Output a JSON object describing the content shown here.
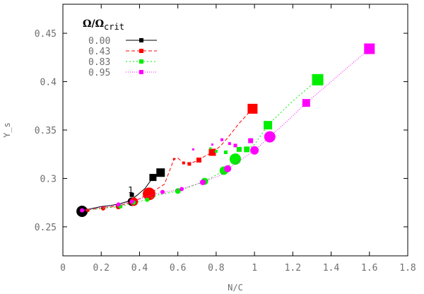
{
  "chart_data": {
    "type": "scatter",
    "xlabel": "N/C",
    "ylabel": "Y_s",
    "xlim": [
      0,
      1.8
    ],
    "ylim": [
      0.22,
      0.48
    ],
    "x_ticks": [
      "0",
      "0.2",
      "0.4",
      "0.6",
      "0.8",
      "1",
      "1.2",
      "1.4",
      "1.6",
      "1.8"
    ],
    "y_ticks": [
      "0.25",
      "0.3",
      "0.35",
      "0.4",
      "0.45"
    ],
    "legend": {
      "title": "Ω/Ω",
      "title_sub": "crit",
      "position": "top-left"
    },
    "annotations": [
      {
        "text": "1",
        "x": 0.37,
        "y": 0.285
      }
    ],
    "series": [
      {
        "name": "0.00",
        "color": "#000000",
        "dash": "solid",
        "line": [
          [
            0.1,
            0.266
          ],
          [
            0.13,
            0.268
          ],
          [
            0.2,
            0.271
          ],
          [
            0.25,
            0.272
          ],
          [
            0.3,
            0.274
          ],
          [
            0.35,
            0.277
          ],
          [
            0.39,
            0.283
          ],
          [
            0.43,
            0.29
          ],
          [
            0.47,
            0.301
          ],
          [
            0.51,
            0.306
          ]
        ],
        "circles": [
          {
            "x": 0.1,
            "y": 0.266,
            "r": 8
          },
          {
            "x": 0.36,
            "y": 0.276,
            "r": 6
          }
        ],
        "squares": [
          {
            "x": 0.36,
            "y": 0.283,
            "s": 6
          },
          {
            "x": 0.47,
            "y": 0.301,
            "s": 10
          },
          {
            "x": 0.51,
            "y": 0.306,
            "s": 12
          }
        ]
      },
      {
        "name": "0.43",
        "color": "#ff0000",
        "dash": "5,3",
        "line": [
          [
            0.1,
            0.267
          ],
          [
            0.15,
            0.268
          ],
          [
            0.2,
            0.269
          ],
          [
            0.3,
            0.272
          ],
          [
            0.37,
            0.276
          ],
          [
            0.45,
            0.284
          ],
          [
            0.53,
            0.294
          ],
          [
            0.58,
            0.32
          ],
          [
            0.6,
            0.321
          ],
          [
            0.63,
            0.316
          ],
          [
            0.66,
            0.315
          ],
          [
            0.71,
            0.319
          ],
          [
            0.74,
            0.323
          ],
          [
            0.78,
            0.327
          ],
          [
            0.82,
            0.333
          ],
          [
            0.86,
            0.342
          ],
          [
            0.92,
            0.357
          ],
          [
            0.99,
            0.372
          ]
        ],
        "circles": [
          {
            "x": 0.13,
            "y": 0.267,
            "r": 2.5
          },
          {
            "x": 0.21,
            "y": 0.269,
            "r": 3
          },
          {
            "x": 0.29,
            "y": 0.271,
            "r": 4
          },
          {
            "x": 0.37,
            "y": 0.276,
            "r": 6
          },
          {
            "x": 0.45,
            "y": 0.284,
            "r": 9
          }
        ],
        "squares": [
          {
            "x": 0.58,
            "y": 0.32,
            "s": 3
          },
          {
            "x": 0.63,
            "y": 0.316,
            "s": 4
          },
          {
            "x": 0.66,
            "y": 0.315,
            "s": 5
          },
          {
            "x": 0.71,
            "y": 0.319,
            "s": 7
          },
          {
            "x": 0.78,
            "y": 0.327,
            "s": 10
          },
          {
            "x": 0.99,
            "y": 0.372,
            "s": 14
          }
        ]
      },
      {
        "name": "0.83",
        "color": "#00ee00",
        "dash": "2,3",
        "line": [
          [
            0.1,
            0.267
          ],
          [
            0.2,
            0.269
          ],
          [
            0.3,
            0.271
          ],
          [
            0.37,
            0.275
          ],
          [
            0.44,
            0.278
          ],
          [
            0.5,
            0.283
          ],
          [
            0.6,
            0.287
          ],
          [
            0.74,
            0.297
          ],
          [
            0.84,
            0.308
          ],
          [
            0.9,
            0.32
          ],
          [
            0.92,
            0.33
          ],
          [
            0.97,
            0.331
          ],
          [
            1.0,
            0.335
          ],
          [
            1.07,
            0.355
          ],
          [
            1.2,
            0.38
          ],
          [
            1.33,
            0.402
          ]
        ],
        "circles": [
          {
            "x": 0.3,
            "y": 0.271,
            "r": 3
          },
          {
            "x": 0.37,
            "y": 0.275,
            "r": 3
          },
          {
            "x": 0.44,
            "y": 0.278,
            "r": 3
          },
          {
            "x": 0.6,
            "y": 0.287,
            "r": 4
          },
          {
            "x": 0.74,
            "y": 0.297,
            "r": 5
          },
          {
            "x": 0.84,
            "y": 0.308,
            "r": 6
          },
          {
            "x": 0.9,
            "y": 0.32,
            "r": 8
          }
        ],
        "squares": [
          {
            "x": 0.77,
            "y": 0.331,
            "s": 3
          },
          {
            "x": 0.8,
            "y": 0.328,
            "s": 4
          },
          {
            "x": 0.85,
            "y": 0.327,
            "s": 5
          },
          {
            "x": 0.92,
            "y": 0.33,
            "s": 7
          },
          {
            "x": 0.96,
            "y": 0.33,
            "s": 8
          },
          {
            "x": 1.07,
            "y": 0.355,
            "s": 12
          },
          {
            "x": 1.33,
            "y": 0.402,
            "s": 16
          }
        ]
      },
      {
        "name": "0.95",
        "color": "#ff00ff",
        "dash": "1,2",
        "line": [
          [
            0.1,
            0.267
          ],
          [
            0.2,
            0.27
          ],
          [
            0.3,
            0.273
          ],
          [
            0.36,
            0.276
          ],
          [
            0.48,
            0.284
          ],
          [
            0.62,
            0.289
          ],
          [
            0.73,
            0.296
          ],
          [
            0.82,
            0.303
          ],
          [
            0.86,
            0.31
          ],
          [
            0.92,
            0.318
          ],
          [
            1.0,
            0.329
          ],
          [
            1.08,
            0.343
          ],
          [
            1.18,
            0.361
          ],
          [
            1.27,
            0.378
          ],
          [
            1.6,
            0.434
          ]
        ],
        "circles": [
          {
            "x": 0.1,
            "y": 0.267,
            "r": 3
          },
          {
            "x": 0.29,
            "y": 0.273,
            "r": 3
          },
          {
            "x": 0.36,
            "y": 0.276,
            "r": 3
          },
          {
            "x": 0.52,
            "y": 0.286,
            "r": 3
          },
          {
            "x": 0.62,
            "y": 0.289,
            "r": 3
          },
          {
            "x": 0.73,
            "y": 0.296,
            "r": 4
          },
          {
            "x": 0.86,
            "y": 0.31,
            "r": 5
          },
          {
            "x": 1.0,
            "y": 0.329,
            "r": 6
          },
          {
            "x": 1.08,
            "y": 0.343,
            "r": 8
          }
        ],
        "squares": [
          {
            "x": 0.68,
            "y": 0.33,
            "s": 3
          },
          {
            "x": 0.78,
            "y": 0.335,
            "s": 3
          },
          {
            "x": 0.83,
            "y": 0.34,
            "s": 4
          },
          {
            "x": 0.87,
            "y": 0.336,
            "s": 4
          },
          {
            "x": 0.9,
            "y": 0.334,
            "s": 5
          },
          {
            "x": 0.98,
            "y": 0.339,
            "s": 7
          },
          {
            "x": 1.27,
            "y": 0.378,
            "s": 11
          },
          {
            "x": 1.6,
            "y": 0.434,
            "s": 15
          }
        ]
      }
    ]
  }
}
